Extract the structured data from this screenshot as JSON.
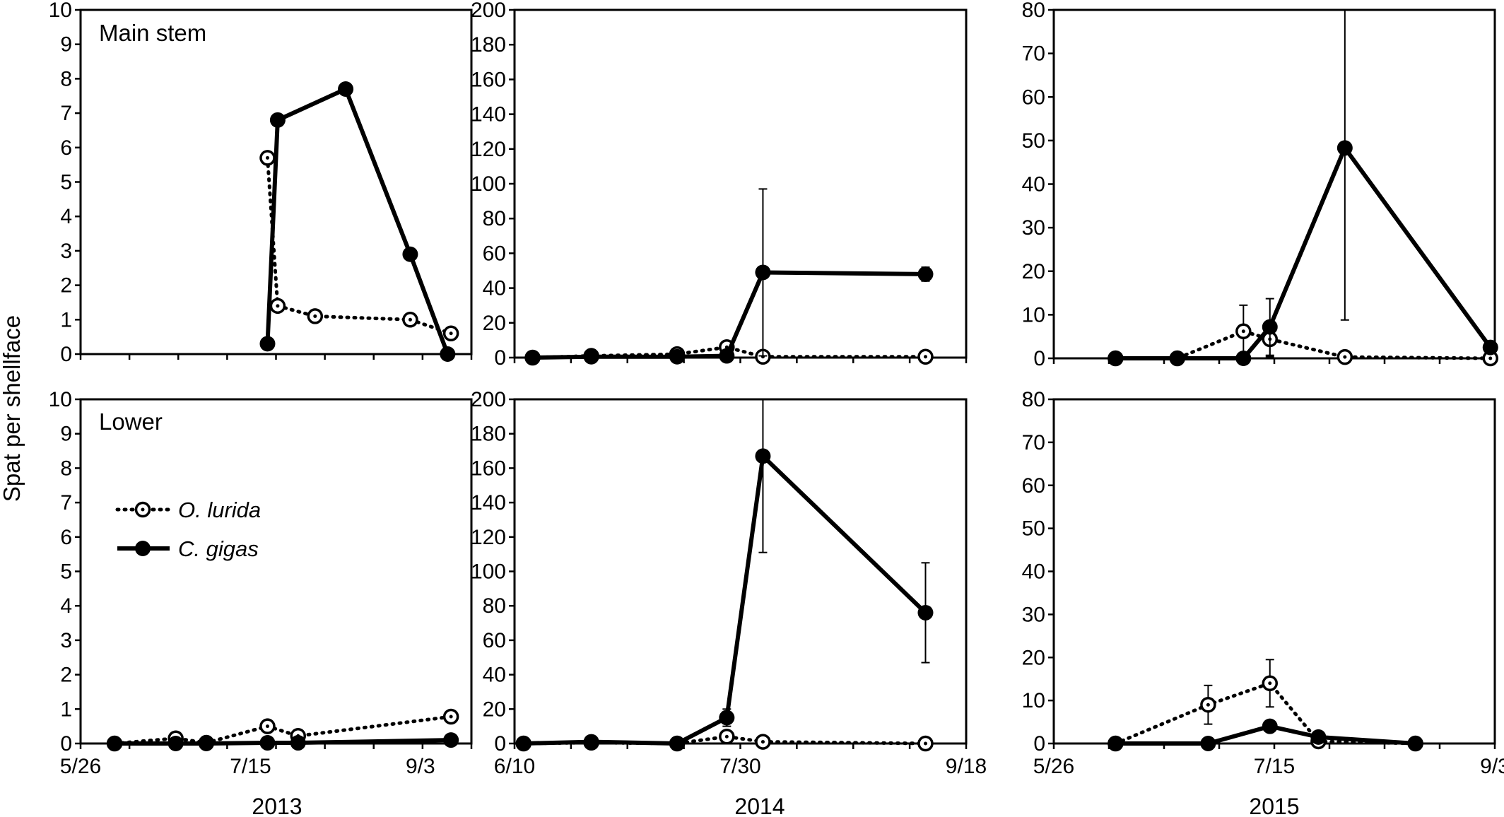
{
  "figure": {
    "ylabel": "Spat per shellface",
    "years": [
      "2013",
      "2014",
      "2015"
    ],
    "row_labels": [
      "Main stem",
      "Lower"
    ],
    "legend": [
      {
        "label": "O. lurida",
        "style": "dotted",
        "marker": "open-circle"
      },
      {
        "label": "C. gigas",
        "style": "solid",
        "marker": "filled-circle"
      }
    ]
  },
  "chart_data": [
    {
      "type": "line",
      "row": "Main stem",
      "year": "2013",
      "xlim": [
        "5/26",
        "9/18"
      ],
      "ylim": [
        0,
        10
      ],
      "yticks": [
        0,
        1,
        2,
        3,
        4,
        5,
        6,
        7,
        8,
        9,
        10
      ],
      "xticks": [],
      "series": [
        {
          "name": "O. lurida",
          "style": "dotted",
          "marker": "open",
          "x": [
            "7/20",
            "7/23",
            "8/3",
            "8/31",
            "9/12"
          ],
          "y": [
            5.7,
            1.4,
            1.1,
            1.0,
            0.6
          ]
        },
        {
          "name": "C. gigas",
          "style": "solid",
          "marker": "filled",
          "x": [
            "7/20",
            "7/23",
            "8/12",
            "8/31",
            "9/11"
          ],
          "y": [
            0.3,
            6.8,
            7.7,
            2.9,
            0.0
          ]
        }
      ]
    },
    {
      "type": "line",
      "row": "Main stem",
      "year": "2014",
      "xlim": [
        "6/10",
        "9/18"
      ],
      "ylim": [
        0,
        200
      ],
      "yticks": [
        0,
        20,
        40,
        60,
        80,
        100,
        120,
        140,
        160,
        180,
        200
      ],
      "xticks": [],
      "series": [
        {
          "name": "O. lurida",
          "style": "dotted",
          "marker": "open",
          "x": [
            "6/14",
            "6/27",
            "7/16",
            "7/27",
            "8/4",
            "9/9"
          ],
          "y": [
            0,
            1,
            2,
            6,
            0.5,
            0.5
          ]
        },
        {
          "name": "C. gigas",
          "style": "solid",
          "marker": "filled",
          "x": [
            "6/14",
            "6/27",
            "7/16",
            "7/27",
            "8/4",
            "9/9"
          ],
          "y": [
            0,
            0.5,
            0.5,
            1,
            49,
            48
          ],
          "error": [
            0,
            0,
            0,
            0,
            48,
            4
          ]
        }
      ]
    },
    {
      "type": "line",
      "row": "Main stem",
      "year": "2015",
      "xlim": [
        "5/26",
        "9/3"
      ],
      "ylim": [
        0,
        80
      ],
      "yticks": [
        0,
        10,
        20,
        30,
        40,
        50,
        60,
        70,
        80
      ],
      "xticks": [],
      "series": [
        {
          "name": "O. lurida",
          "style": "dotted",
          "marker": "open",
          "x": [
            "6/9",
            "6/23",
            "7/8",
            "7/14",
            "7/31",
            "9/2"
          ],
          "y": [
            0,
            0,
            6.2,
            4.4,
            0.3,
            0
          ],
          "error": [
            0,
            0,
            6,
            4,
            0,
            0
          ]
        },
        {
          "name": "C. gigas",
          "style": "solid",
          "marker": "filled",
          "x": [
            "6/9",
            "6/23",
            "7/8",
            "7/14",
            "7/31",
            "9/2"
          ],
          "y": [
            0,
            0,
            0,
            7.2,
            48.3,
            2.5
          ],
          "error": [
            0,
            0,
            0,
            6.5,
            39.5,
            1
          ]
        }
      ]
    },
    {
      "type": "line",
      "row": "Lower",
      "year": "2013",
      "xlim": [
        "5/26",
        "9/18"
      ],
      "ylim": [
        0,
        10
      ],
      "yticks": [
        0,
        1,
        2,
        3,
        4,
        5,
        6,
        7,
        8,
        9,
        10
      ],
      "xticks": [
        "5/26",
        "7/15",
        "9/3"
      ],
      "series": [
        {
          "name": "O. lurida",
          "style": "dotted",
          "marker": "open",
          "x": [
            "6/5",
            "6/23",
            "7/2",
            "7/20",
            "7/29",
            "9/12"
          ],
          "y": [
            0,
            0.15,
            0.02,
            0.5,
            0.22,
            0.78
          ]
        },
        {
          "name": "C. gigas",
          "style": "solid",
          "marker": "filled",
          "x": [
            "6/5",
            "6/23",
            "7/2",
            "7/20",
            "7/29",
            "9/12"
          ],
          "y": [
            0,
            0,
            0,
            0.02,
            0.02,
            0.1
          ]
        }
      ]
    },
    {
      "type": "line",
      "row": "Lower",
      "year": "2014",
      "xlim": [
        "6/10",
        "9/18"
      ],
      "ylim": [
        0,
        200
      ],
      "yticks": [
        0,
        20,
        40,
        60,
        80,
        100,
        120,
        140,
        160,
        180,
        200
      ],
      "xticks": [
        "6/10",
        "7/30",
        "9/18"
      ],
      "series": [
        {
          "name": "O. lurida",
          "style": "dotted",
          "marker": "open",
          "x": [
            "6/12",
            "6/27",
            "7/16",
            "7/27",
            "8/4",
            "9/9"
          ],
          "y": [
            0,
            0.5,
            0,
            4,
            1,
            0
          ]
        },
        {
          "name": "C. gigas",
          "style": "solid",
          "marker": "filled",
          "x": [
            "6/12",
            "6/27",
            "7/16",
            "7/27",
            "8/4",
            "9/9"
          ],
          "y": [
            0,
            1,
            0,
            15,
            167,
            76
          ],
          "error": [
            0,
            0,
            0,
            5,
            56,
            29
          ]
        }
      ]
    },
    {
      "type": "line",
      "row": "Lower",
      "year": "2015",
      "xlim": [
        "5/26",
        "9/3"
      ],
      "ylim": [
        0,
        80
      ],
      "yticks": [
        0,
        10,
        20,
        30,
        40,
        50,
        60,
        70,
        80
      ],
      "xticks": [
        "5/26",
        "7/15",
        "9/3"
      ],
      "series": [
        {
          "name": "O. lurida",
          "style": "dotted",
          "marker": "open",
          "x": [
            "6/9",
            "6/30",
            "7/14",
            "7/25",
            "8/16"
          ],
          "y": [
            0,
            9,
            14,
            0.5,
            0
          ],
          "error": [
            0,
            4.5,
            5.5,
            0,
            0
          ]
        },
        {
          "name": "C. gigas",
          "style": "solid",
          "marker": "filled",
          "x": [
            "6/9",
            "6/30",
            "7/14",
            "7/25",
            "8/16"
          ],
          "y": [
            0,
            0,
            4,
            1.5,
            0
          ]
        }
      ]
    }
  ]
}
